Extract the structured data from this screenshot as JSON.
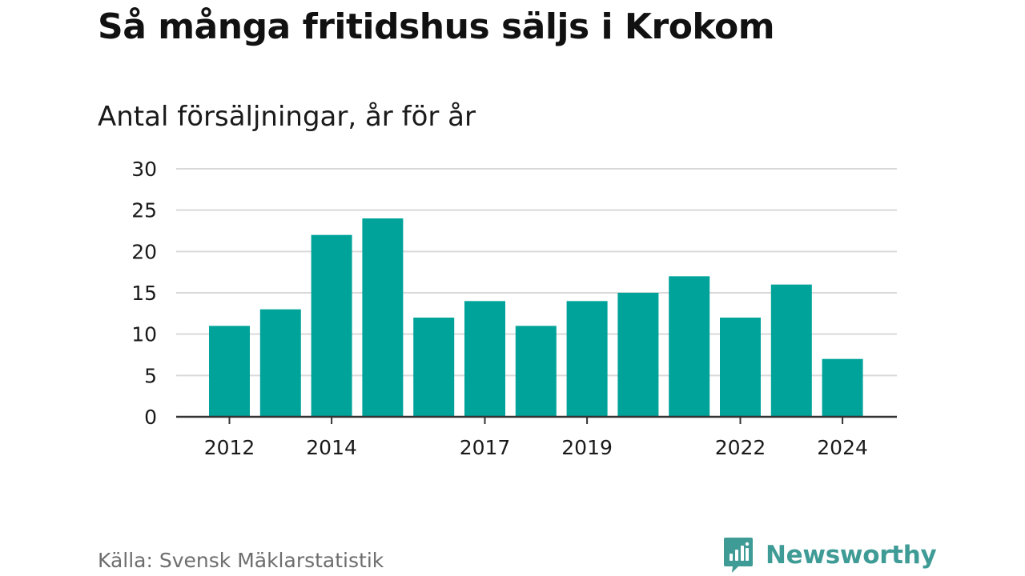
{
  "header": {
    "title": "Så många fritidshus säljs i Krokom",
    "subtitle": "Antal försäljningar, år för år"
  },
  "footer": {
    "source": "Källa: Svensk Mäklarstatistik",
    "brand_name": "Newsworthy",
    "brand_color": "#3f9b95"
  },
  "chart_data": {
    "type": "bar",
    "title": "Så många fritidshus säljs i Krokom",
    "subtitle": "Antal försäljningar, år för år",
    "categories": [
      2012,
      2013,
      2014,
      2015,
      2016,
      2017,
      2018,
      2019,
      2020,
      2021,
      2022,
      2023,
      2024
    ],
    "values": [
      11,
      13,
      22,
      24,
      12,
      14,
      11,
      14,
      15,
      17,
      12,
      16,
      7
    ],
    "x_tick_labels": [
      "2012",
      "2014",
      "2017",
      "2019",
      "2022",
      "2024"
    ],
    "y_ticks": [
      0,
      5,
      10,
      15,
      20,
      25,
      30
    ],
    "ylim": [
      0,
      30
    ],
    "xlabel": "",
    "ylabel": "",
    "grid": true,
    "bar_color": "#00a39a",
    "grid_color": "#d9d9d9",
    "axis_color": "#333333"
  }
}
